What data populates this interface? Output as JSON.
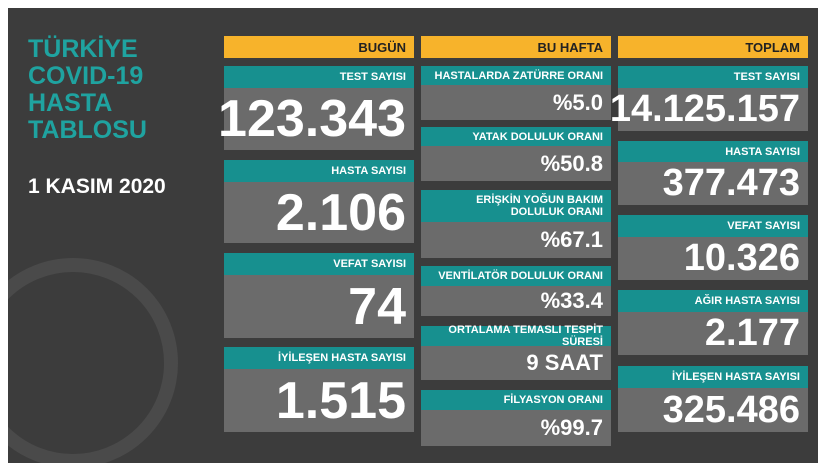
{
  "title": [
    "TÜRKİYE",
    "COVID-19",
    "HASTA",
    "TABLOSU"
  ],
  "date": "1 KASIM 2020",
  "columns": [
    {
      "header": "BUGÜN",
      "cards": [
        {
          "label": "TEST SAYISI",
          "value": "123.343"
        },
        {
          "label": "HASTA SAYISI",
          "value": "2.106"
        },
        {
          "label": "VEFAT SAYISI",
          "value": "74"
        },
        {
          "label": "İYİLEŞEN HASTA SAYISI",
          "value": "1.515"
        }
      ]
    },
    {
      "header": "BU HAFTA",
      "cards": [
        {
          "label": "HASTALARDA ZATÜRRE ORANI",
          "value": "%5.0"
        },
        {
          "label": "YATAK DOLULUK ORANI",
          "value": "%50.8"
        },
        {
          "label": "ERİŞKİN YOĞUN BAKIM DOLULUK ORANI",
          "value": "%67.1"
        },
        {
          "label": "VENTİLATÖR DOLULUK ORANI",
          "value": "%33.4"
        },
        {
          "label": "ORTALAMA TEMASLI TESPİT SÜRESİ",
          "value": "9 SAAT"
        },
        {
          "label": "FİLYASYON ORANI",
          "value": "%99.7"
        }
      ]
    },
    {
      "header": "TOPLAM",
      "cards": [
        {
          "label": "TEST SAYISI",
          "value": "14.125.157"
        },
        {
          "label": "HASTA SAYISI",
          "value": "377.473"
        },
        {
          "label": "VEFAT SAYISI",
          "value": "10.326"
        },
        {
          "label": "AĞIR HASTA SAYISI",
          "value": "2.177"
        },
        {
          "label": "İYİLEŞEN HASTA SAYISI",
          "value": "325.486"
        }
      ]
    }
  ]
}
